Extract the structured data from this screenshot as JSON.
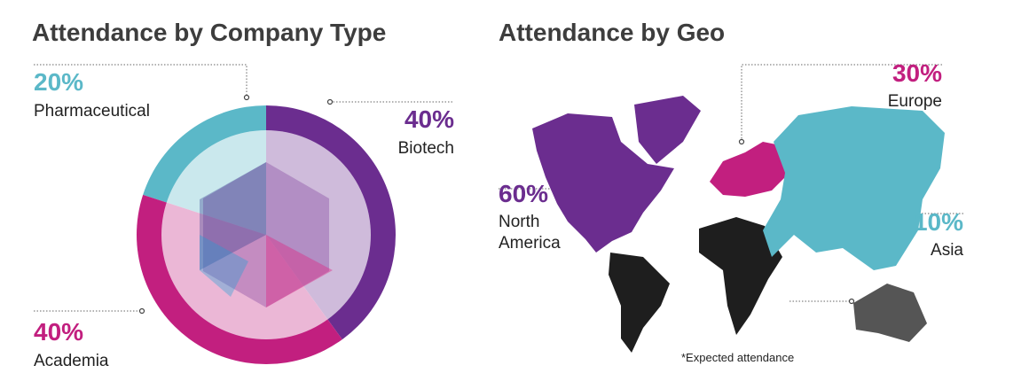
{
  "chart_data": [
    {
      "type": "pie",
      "title": "Attendance by Company Type",
      "categories": [
        "Pharmaceutical",
        "Biotech",
        "Academia"
      ],
      "values": [
        20,
        40,
        40
      ],
      "value_labels": [
        "20%",
        "40%",
        "40%"
      ],
      "colors": [
        "#5bb8c8",
        "#6b2d8f",
        "#c21f7f"
      ]
    },
    {
      "type": "map",
      "title": "Attendance by Geo",
      "categories": [
        "North America",
        "Europe",
        "Asia"
      ],
      "values": [
        60,
        30,
        10
      ],
      "value_labels": [
        "60%",
        "30%",
        "10%"
      ],
      "colors": [
        "#6b2d8f",
        "#c21f7f",
        "#5bb8c8"
      ],
      "note": "*Expected attendance"
    }
  ]
}
